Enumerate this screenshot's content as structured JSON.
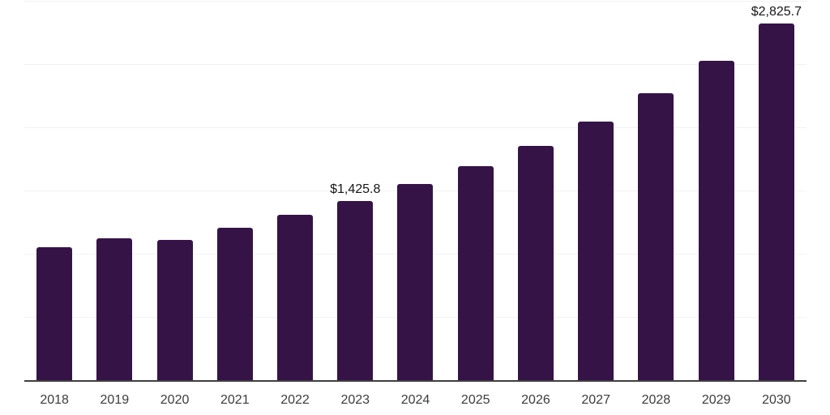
{
  "chart_data": {
    "type": "bar",
    "title": "",
    "xlabel": "",
    "ylabel": "",
    "categories": [
      "2018",
      "2019",
      "2020",
      "2021",
      "2022",
      "2023",
      "2024",
      "2025",
      "2026",
      "2027",
      "2028",
      "2029",
      "2030"
    ],
    "values": [
      1056,
      1127,
      1115,
      1211,
      1311,
      1425.8,
      1555,
      1700,
      1862,
      2054,
      2274,
      2530,
      2825.7
    ],
    "bar_labels": [
      "",
      "",
      "",
      "",
      "",
      "$1,425.8",
      "",
      "",
      "",
      "",
      "",
      "",
      "$2,825.7"
    ],
    "ylim": [
      0,
      3000
    ],
    "gridline_step": 500,
    "grid": "horizontal",
    "y_tick_labels_visible": false,
    "legend_position": "none",
    "colors": {
      "bar": "#351347",
      "gridline": "#f2f2f2",
      "axis_line": "#3f3f3f",
      "year_label": "#3c3c3c",
      "value_label": "#161616",
      "background": "#ffffff"
    }
  }
}
